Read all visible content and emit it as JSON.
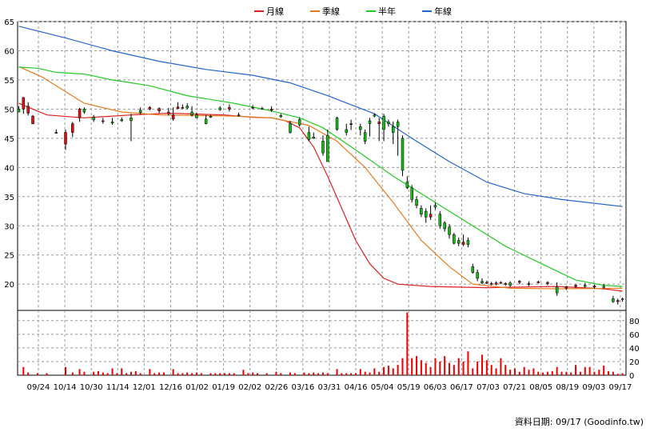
{
  "chart_data": {
    "type": "candlestick",
    "legend": [
      {
        "name": "月線",
        "color": "#e02020"
      },
      {
        "name": "季線",
        "color": "#e87a1c"
      },
      {
        "name": "半年",
        "color": "#22cc22"
      },
      {
        "name": "年線",
        "color": "#2266cc"
      }
    ],
    "x_labels": [
      "09/24",
      "10/14",
      "10/30",
      "11/14",
      "12/01",
      "12/16",
      "01/02",
      "01/19",
      "02/02",
      "02/26",
      "03/16",
      "03/31",
      "04/16",
      "05/04",
      "05/19",
      "06/03",
      "06/17",
      "07/03",
      "07/21",
      "08/05",
      "08/19",
      "09/03",
      "09/17"
    ],
    "price_axis": {
      "ticks": [
        20,
        25,
        30,
        35,
        40,
        45,
        50,
        55,
        60,
        65
      ],
      "range": [
        15.5,
        65
      ]
    },
    "volume_axis": {
      "ticks": [
        0,
        20,
        40,
        60,
        80
      ],
      "range": [
        0,
        95
      ]
    },
    "grid": true,
    "legend_position": "top-center",
    "moving_averages": [
      {
        "name": "月線",
        "color": "#e02020",
        "values": [
          [
            0,
            51.0
          ],
          [
            12,
            49.0
          ],
          [
            28,
            48.5
          ],
          [
            48,
            49.0
          ],
          [
            64,
            49.3
          ],
          [
            88,
            49.0
          ],
          [
            100,
            48.6
          ],
          [
            108,
            48.5
          ],
          [
            114,
            48.0
          ],
          [
            120,
            46.8
          ],
          [
            126,
            43.5
          ],
          [
            132,
            38.5
          ],
          [
            138,
            33.0
          ],
          [
            144,
            27.5
          ],
          [
            150,
            23.5
          ],
          [
            156,
            21.0
          ],
          [
            162,
            20.0
          ],
          [
            176,
            19.6
          ],
          [
            200,
            19.4
          ],
          [
            230,
            19.6
          ],
          [
            250,
            19.2
          ],
          [
            258,
            18.8
          ]
        ]
      },
      {
        "name": "季線",
        "color": "#e87a1c",
        "values": [
          [
            0,
            57.3
          ],
          [
            10,
            55.5
          ],
          [
            28,
            51.0
          ],
          [
            44,
            49.5
          ],
          [
            60,
            49.0
          ],
          [
            92,
            48.8
          ],
          [
            108,
            48.5
          ],
          [
            124,
            47.2
          ],
          [
            136,
            44.5
          ],
          [
            148,
            40.0
          ],
          [
            160,
            34.0
          ],
          [
            172,
            27.5
          ],
          [
            184,
            23.0
          ],
          [
            194,
            20.0
          ],
          [
            210,
            19.3
          ],
          [
            230,
            19.2
          ],
          [
            258,
            19.3
          ]
        ]
      },
      {
        "name": "半年",
        "color": "#22cc22",
        "values": [
          [
            0,
            57.2
          ],
          [
            8,
            57.0
          ],
          [
            16,
            56.3
          ],
          [
            28,
            56.0
          ],
          [
            40,
            55.0
          ],
          [
            56,
            54.0
          ],
          [
            72,
            52.3
          ],
          [
            92,
            51.0
          ],
          [
            108,
            49.7
          ],
          [
            120,
            48.5
          ],
          [
            130,
            46.8
          ],
          [
            144,
            43.0
          ],
          [
            160,
            38.5
          ],
          [
            176,
            34.5
          ],
          [
            192,
            30.5
          ],
          [
            208,
            26.5
          ],
          [
            226,
            23.0
          ],
          [
            238,
            20.7
          ],
          [
            250,
            19.8
          ],
          [
            258,
            19.6
          ]
        ]
      },
      {
        "name": "年線",
        "color": "#2266cc",
        "values": [
          [
            0,
            64.2
          ],
          [
            20,
            62.2
          ],
          [
            40,
            60.0
          ],
          [
            60,
            58.2
          ],
          [
            80,
            56.8
          ],
          [
            100,
            55.8
          ],
          [
            116,
            54.5
          ],
          [
            132,
            52.3
          ],
          [
            152,
            49.2
          ],
          [
            168,
            45.0
          ],
          [
            184,
            41.0
          ],
          [
            200,
            37.5
          ],
          [
            216,
            35.5
          ],
          [
            232,
            34.5
          ],
          [
            258,
            33.3
          ]
        ]
      }
    ],
    "candles": [
      [
        0,
        50.0,
        50.5,
        49.5,
        49.5
      ],
      [
        2,
        50.0,
        52.0,
        49.2,
        52.0
      ],
      [
        4,
        49.3,
        51.2,
        48.9,
        50.5
      ],
      [
        6,
        47.5,
        49.0,
        47.4,
        48.8
      ],
      [
        16,
        46.0,
        46.5,
        46.0,
        46.0
      ],
      [
        20,
        44.0,
        46.5,
        43.0,
        46.0
      ],
      [
        23,
        46.0,
        47.8,
        45.2,
        47.5
      ],
      [
        26,
        48.5,
        50.2,
        47.8,
        50.0
      ],
      [
        28,
        50.0,
        50.3,
        49.2,
        49.5
      ],
      [
        32,
        48.6,
        49.0,
        47.8,
        48.2
      ],
      [
        36,
        47.9,
        48.5,
        47.5,
        48.0
      ],
      [
        40,
        47.8,
        48.5,
        47.3,
        47.6
      ],
      [
        44,
        48.2,
        48.6,
        47.8,
        48.0
      ],
      [
        48,
        48.5,
        49.2,
        44.5,
        48.0
      ],
      [
        52,
        49.8,
        50.3,
        49.1,
        49.4
      ],
      [
        56,
        50.0,
        50.5,
        49.8,
        50.3
      ],
      [
        60,
        49.7,
        50.3,
        49.3,
        50.1
      ],
      [
        64,
        49.2,
        50.2,
        48.9,
        49.5
      ],
      [
        66,
        48.3,
        50.3,
        48.0,
        49.0
      ],
      [
        68,
        50.1,
        51.2,
        50.0,
        50.4
      ],
      [
        70,
        50.2,
        50.8,
        50.0,
        50.3
      ],
      [
        72,
        50.5,
        51.0,
        50.0,
        50.2
      ],
      [
        74,
        49.5,
        50.5,
        48.7,
        49.0
      ],
      [
        76,
        49.0,
        49.4,
        48.5,
        48.5
      ],
      [
        80,
        48.3,
        49.0,
        47.4,
        47.5
      ],
      [
        82,
        48.8,
        49.0,
        48.5,
        48.6
      ],
      [
        86,
        50.2,
        50.5,
        49.7,
        49.9
      ],
      [
        90,
        50.0,
        50.8,
        49.6,
        50.3
      ],
      [
        94,
        49.0,
        49.4,
        48.7,
        48.9
      ],
      [
        100,
        50.2,
        50.7,
        50.0,
        50.3
      ],
      [
        104,
        50.1,
        50.4,
        49.9,
        50.0
      ],
      [
        108,
        49.8,
        50.5,
        49.5,
        50.0
      ],
      [
        112,
        48.9,
        49.2,
        48.5,
        48.7
      ],
      [
        116,
        47.5,
        48.0,
        45.8,
        46.0
      ],
      [
        120,
        48.2,
        48.6,
        47.0,
        47.3
      ],
      [
        124,
        46.0,
        47.0,
        44.5,
        44.8
      ],
      [
        126,
        45.2,
        46.0,
        44.9,
        45.0
      ],
      [
        130,
        44.5,
        45.5,
        42.0,
        42.5
      ],
      [
        132,
        45.5,
        46.5,
        41.0,
        41.0
      ],
      [
        136,
        48.5,
        48.7,
        46.3,
        46.5
      ],
      [
        140,
        46.5,
        47.5,
        45.5,
        46.0
      ],
      [
        142,
        47.5,
        48.2,
        46.4,
        47.5
      ],
      [
        146,
        47.0,
        47.5,
        45.5,
        46.5
      ],
      [
        148,
        46.0,
        46.5,
        44.0,
        44.5
      ],
      [
        150,
        48.0,
        48.5,
        45.3,
        47.5
      ],
      [
        152,
        49.0,
        49.3,
        48.6,
        48.8
      ],
      [
        154,
        47.5,
        48.5,
        44.5,
        47.8
      ],
      [
        156,
        48.8,
        49.2,
        44.5,
        46.5
      ],
      [
        158,
        47.8,
        48.2,
        47.0,
        47.5
      ],
      [
        160,
        47.0,
        47.9,
        44.0,
        46.0
      ],
      [
        162,
        47.8,
        48.2,
        42.0,
        47.0
      ],
      [
        164,
        45.0,
        45.5,
        38.5,
        39.5
      ],
      [
        166,
        37.5,
        38.5,
        36.3,
        36.5
      ],
      [
        168,
        36.5,
        37.0,
        34.0,
        34.5
      ],
      [
        170,
        34.5,
        35.0,
        33.0,
        33.5
      ],
      [
        172,
        33.0,
        33.5,
        31.5,
        32.0
      ],
      [
        174,
        32.5,
        33.0,
        30.5,
        31.5
      ],
      [
        176,
        31.5,
        33.5,
        31.0,
        32.0
      ],
      [
        178,
        33.5,
        34.0,
        32.8,
        33.2
      ],
      [
        180,
        32.0,
        32.5,
        29.5,
        30.0
      ],
      [
        182,
        30.5,
        30.8,
        29.0,
        29.5
      ],
      [
        184,
        29.8,
        30.3,
        27.8,
        28.5
      ],
      [
        186,
        28.5,
        28.8,
        26.8,
        27.0
      ],
      [
        188,
        27.5,
        28.0,
        26.5,
        27.0
      ],
      [
        190,
        26.8,
        28.5,
        26.5,
        27.2
      ],
      [
        192,
        27.5,
        28.0,
        26.3,
        26.8
      ],
      [
        194,
        23.0,
        23.5,
        21.8,
        22.0
      ],
      [
        196,
        22.0,
        22.5,
        20.5,
        21.0
      ],
      [
        198,
        20.5,
        21.0,
        20.0,
        20.2
      ],
      [
        200,
        20.2,
        20.6,
        20.0,
        20.3
      ],
      [
        202,
        20.0,
        20.4,
        19.8,
        20.1
      ],
      [
        204,
        20.0,
        20.5,
        19.8,
        20.2
      ],
      [
        206,
        20.2,
        20.5,
        20.0,
        20.3
      ],
      [
        208,
        20.0,
        20.3,
        19.7,
        20.1
      ],
      [
        210,
        20.2,
        20.5,
        19.5,
        19.8
      ],
      [
        214,
        20.3,
        20.7,
        20.0,
        20.5
      ],
      [
        218,
        20.0,
        20.5,
        19.7,
        20.1
      ],
      [
        222,
        20.3,
        20.6,
        20.1,
        20.4
      ],
      [
        226,
        20.1,
        20.5,
        19.8,
        20.3
      ],
      [
        230,
        19.5,
        20.3,
        18.0,
        18.5
      ],
      [
        234,
        19.3,
        19.7,
        19.0,
        19.5
      ],
      [
        238,
        19.6,
        20.0,
        19.3,
        19.8
      ],
      [
        242,
        19.8,
        20.2,
        19.4,
        19.6
      ],
      [
        246,
        19.5,
        19.9,
        19.2,
        19.7
      ],
      [
        250,
        19.6,
        20.0,
        19.2,
        19.5
      ],
      [
        254,
        17.5,
        18.0,
        16.8,
        17.0
      ],
      [
        256,
        17.0,
        17.5,
        16.5,
        17.2
      ],
      [
        258,
        17.5,
        17.7,
        17.0,
        17.4
      ]
    ],
    "volumes": [
      [
        2,
        12
      ],
      [
        4,
        4
      ],
      [
        8,
        3
      ],
      [
        12,
        3
      ],
      [
        20,
        12
      ],
      [
        23,
        4
      ],
      [
        26,
        9
      ],
      [
        28,
        5
      ],
      [
        32,
        5
      ],
      [
        34,
        6
      ],
      [
        36,
        4
      ],
      [
        38,
        3
      ],
      [
        40,
        10
      ],
      [
        42,
        3
      ],
      [
        44,
        10
      ],
      [
        46,
        3
      ],
      [
        48,
        5
      ],
      [
        50,
        6
      ],
      [
        52,
        3
      ],
      [
        56,
        9
      ],
      [
        58,
        3
      ],
      [
        60,
        4
      ],
      [
        62,
        4
      ],
      [
        66,
        9
      ],
      [
        68,
        3
      ],
      [
        70,
        3
      ],
      [
        72,
        4
      ],
      [
        74,
        3
      ],
      [
        76,
        4
      ],
      [
        78,
        3
      ],
      [
        82,
        3
      ],
      [
        84,
        3
      ],
      [
        86,
        3
      ],
      [
        88,
        3
      ],
      [
        90,
        3
      ],
      [
        92,
        3
      ],
      [
        96,
        8
      ],
      [
        98,
        3
      ],
      [
        100,
        4
      ],
      [
        102,
        3
      ],
      [
        106,
        3
      ],
      [
        110,
        5
      ],
      [
        112,
        3
      ],
      [
        116,
        4
      ],
      [
        118,
        3
      ],
      [
        122,
        4
      ],
      [
        124,
        3
      ],
      [
        126,
        4
      ],
      [
        128,
        3
      ],
      [
        130,
        4
      ],
      [
        132,
        3
      ],
      [
        136,
        9
      ],
      [
        138,
        3
      ],
      [
        140,
        3
      ],
      [
        142,
        3
      ],
      [
        144,
        3
      ],
      [
        146,
        9
      ],
      [
        148,
        5
      ],
      [
        150,
        4
      ],
      [
        152,
        10
      ],
      [
        154,
        5
      ],
      [
        156,
        12
      ],
      [
        158,
        14
      ],
      [
        160,
        10
      ],
      [
        162,
        15
      ],
      [
        164,
        25
      ],
      [
        166,
        92
      ],
      [
        168,
        25
      ],
      [
        170,
        28
      ],
      [
        172,
        22
      ],
      [
        174,
        18
      ],
      [
        176,
        12
      ],
      [
        178,
        25
      ],
      [
        180,
        20
      ],
      [
        182,
        28
      ],
      [
        184,
        18
      ],
      [
        186,
        15
      ],
      [
        188,
        25
      ],
      [
        190,
        20
      ],
      [
        192,
        35
      ],
      [
        194,
        10
      ],
      [
        196,
        20
      ],
      [
        198,
        30
      ],
      [
        200,
        22
      ],
      [
        202,
        15
      ],
      [
        204,
        10
      ],
      [
        206,
        25
      ],
      [
        208,
        15
      ],
      [
        210,
        8
      ],
      [
        212,
        10
      ],
      [
        214,
        5
      ],
      [
        216,
        12
      ],
      [
        218,
        8
      ],
      [
        220,
        10
      ],
      [
        222,
        5
      ],
      [
        224,
        4
      ],
      [
        226,
        5
      ],
      [
        228,
        6
      ],
      [
        230,
        12
      ],
      [
        232,
        5
      ],
      [
        234,
        5
      ],
      [
        236,
        4
      ],
      [
        238,
        15
      ],
      [
        240,
        5
      ],
      [
        242,
        12
      ],
      [
        244,
        12
      ],
      [
        246,
        5
      ],
      [
        248,
        8
      ],
      [
        250,
        14
      ],
      [
        252,
        6
      ],
      [
        254,
        5
      ],
      [
        256,
        2
      ],
      [
        258,
        3
      ]
    ]
  },
  "footer": {
    "label": "資料日期: 09/17 (Goodinfo.tw)"
  }
}
